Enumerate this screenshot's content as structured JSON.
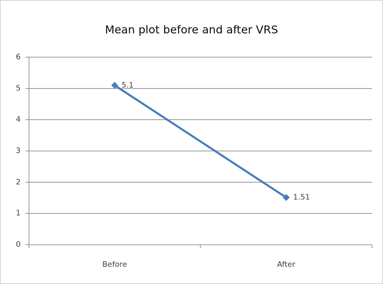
{
  "chart_data": {
    "type": "line",
    "title": "Mean plot before and after VRS",
    "categories": [
      "Before",
      "After"
    ],
    "values": [
      5.1,
      1.51
    ],
    "color": "#4a7ebb",
    "ylim": [
      0,
      6
    ],
    "yticks": [
      0,
      1,
      2,
      3,
      4,
      5,
      6
    ],
    "grid": true
  }
}
